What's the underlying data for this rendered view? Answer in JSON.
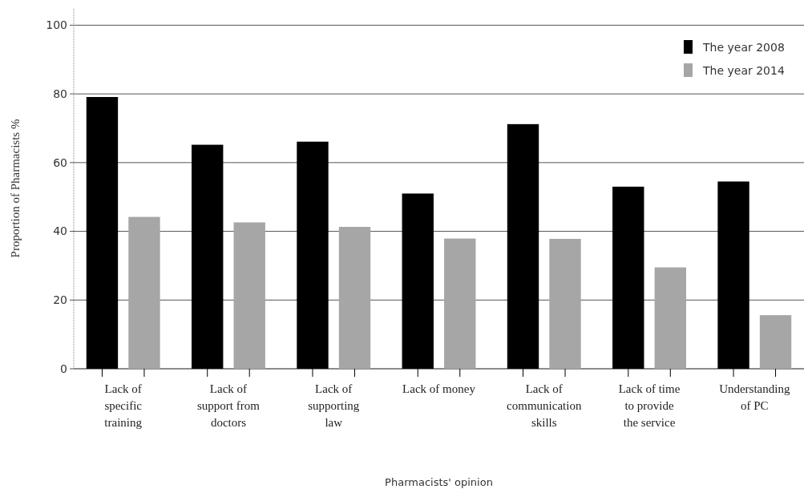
{
  "chart_data": {
    "type": "bar",
    "xlabel": "Pharmacists' opinion",
    "ylabel": "Proportion of Pharmacists %",
    "categories": [
      "Lack of specific training",
      "Lack of support from doctors",
      "Lack of supporting law",
      "Lack of money",
      "Lack of communication skills",
      "Lack of time to provide the service",
      "Understanding of PC"
    ],
    "series": [
      {
        "name": "The year 2008",
        "color": "#000000",
        "values": [
          79.1,
          65.2,
          66.1,
          51.0,
          71.2,
          53.0,
          54.5
        ]
      },
      {
        "name": "The year 2014",
        "color": "#a6a6a6",
        "values": [
          44.2,
          42.6,
          41.3,
          37.9,
          37.8,
          29.5,
          15.6
        ]
      }
    ],
    "ylim": [
      0,
      105
    ],
    "yticks": [
      0,
      20,
      40,
      60,
      80,
      100
    ],
    "grid": "y",
    "legend": "top right"
  }
}
